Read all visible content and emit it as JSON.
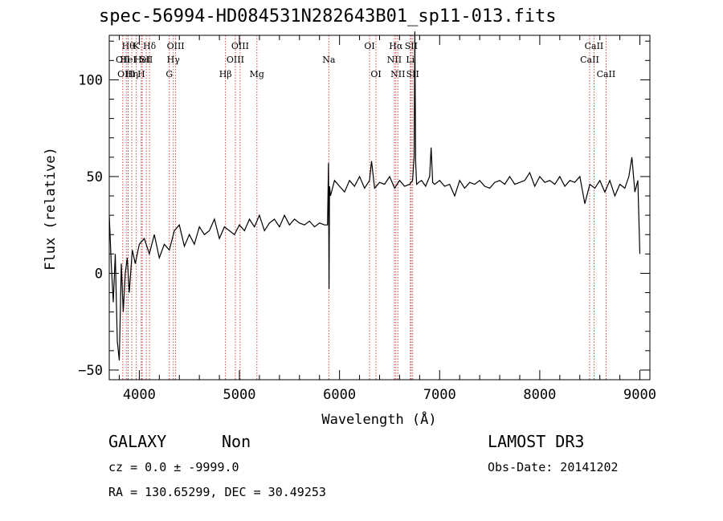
{
  "title": "spec-56994-HD084531N282643B01_sp11-013.fits",
  "info": {
    "class_label": "GALAXY",
    "subclass_label": "Non",
    "survey": "LAMOST DR3",
    "cz": "cz = 0.0 ± -9999.0",
    "obs_date": "Obs-Date: 20141202",
    "radec": "RA = 130.65299, DEC =  30.49253"
  },
  "chart_data": {
    "type": "line",
    "title": "spec-56994-HD084531N282643B01_sp11-013.fits",
    "xlabel": "Wavelength (Å)",
    "ylabel": "Flux (relative)",
    "xlim": [
      3700,
      9100
    ],
    "ylim": [
      -55,
      123
    ],
    "x_ticks": [
      4000,
      5000,
      6000,
      7000,
      8000,
      9000
    ],
    "y_ticks": [
      -50,
      0,
      50,
      100
    ],
    "grid": false,
    "line_color": "#000000",
    "marker_color": "#cc3333",
    "series": [
      {
        "x": [
          3700,
          3720,
          3740,
          3760,
          3780,
          3800,
          3820,
          3840,
          3860,
          3880,
          3900,
          3930,
          3960,
          4000,
          4050,
          4100,
          4150,
          4200,
          4250,
          4300,
          4350,
          4400,
          4450,
          4500,
          4550,
          4600,
          4650,
          4700,
          4750,
          4800,
          4850,
          4900,
          4950,
          5000,
          5050,
          5100,
          5150,
          5200,
          5250,
          5300,
          5350,
          5400,
          5450,
          5500,
          5550,
          5600,
          5650,
          5700,
          5750,
          5800,
          5850,
          5880,
          5890,
          5895,
          5900,
          5910,
          5950,
          6000,
          6050,
          6100,
          6150,
          6200,
          6250,
          6300,
          6320,
          6350,
          6400,
          6450,
          6500,
          6550,
          6600,
          6650,
          6700,
          6730,
          6745,
          6752,
          6760,
          6770,
          6790,
          6820,
          6860,
          6900,
          6915,
          6930,
          6950,
          7000,
          7050,
          7100,
          7150,
          7200,
          7250,
          7300,
          7350,
          7400,
          7450,
          7500,
          7550,
          7600,
          7650,
          7700,
          7750,
          7800,
          7850,
          7900,
          7950,
          8000,
          8050,
          8100,
          8150,
          8200,
          8250,
          8300,
          8350,
          8400,
          8450,
          8500,
          8550,
          8600,
          8650,
          8700,
          8750,
          8800,
          8850,
          8890,
          8920,
          8950,
          8980,
          9000
        ],
        "y": [
          30,
          5,
          -15,
          10,
          -35,
          -45,
          5,
          -20,
          0,
          8,
          -10,
          12,
          5,
          15,
          18,
          10,
          20,
          8,
          15,
          12,
          22,
          25,
          14,
          20,
          15,
          24,
          20,
          22,
          28,
          18,
          24,
          22,
          20,
          25,
          22,
          28,
          24,
          30,
          22,
          26,
          28,
          24,
          30,
          25,
          28,
          26,
          25,
          27,
          24,
          26,
          25,
          25,
          57,
          -8,
          45,
          40,
          48,
          45,
          42,
          48,
          45,
          50,
          44,
          48,
          58,
          44,
          47,
          46,
          50,
          44,
          48,
          45,
          46,
          48,
          60,
          125,
          58,
          46,
          47,
          48,
          45,
          50,
          65,
          47,
          46,
          48,
          45,
          46,
          40,
          48,
          44,
          47,
          46,
          48,
          45,
          44,
          47,
          48,
          46,
          50,
          46,
          47,
          48,
          52,
          45,
          50,
          47,
          48,
          46,
          50,
          45,
          48,
          47,
          50,
          36,
          46,
          44,
          48,
          42,
          48,
          40,
          46,
          44,
          50,
          60,
          42,
          48,
          10
        ]
      }
    ],
    "annotations": [
      {
        "x": 3835,
        "text": "OII",
        "row": 2
      },
      {
        "x": 3870,
        "text": "OIII",
        "row": 3
      },
      {
        "x": 3890,
        "text": "Hθ",
        "row": 1
      },
      {
        "x": 3889,
        "text": "HeI",
        "row": 2
      },
      {
        "x": 3925,
        "text": "Hη",
        "row": 3
      },
      {
        "x": 3970,
        "text": "K",
        "row": 1
      },
      {
        "x": 4020,
        "text": "H",
        "row": 3
      },
      {
        "x": 4030,
        "text": "HeI",
        "row": 2
      },
      {
        "x": 4070,
        "text": "SII",
        "row": 2
      },
      {
        "x": 4102,
        "text": "Hδ",
        "row": 1
      },
      {
        "x": 4300,
        "text": "G",
        "row": 3
      },
      {
        "x": 4340,
        "text": "Hγ",
        "row": 2
      },
      {
        "x": 4363,
        "text": "OIII",
        "row": 1
      },
      {
        "x": 4861,
        "text": "Hβ",
        "row": 3
      },
      {
        "x": 4959,
        "text": "OIII",
        "row": 2
      },
      {
        "x": 5007,
        "text": "OIII",
        "row": 1
      },
      {
        "x": 5175,
        "text": "Mg",
        "row": 3
      },
      {
        "x": 5893,
        "text": "Na",
        "row": 2
      },
      {
        "x": 6300,
        "text": "OI",
        "row": 1
      },
      {
        "x": 6364,
        "text": "OI",
        "row": 3
      },
      {
        "x": 6548,
        "text": "NII",
        "row": 2
      },
      {
        "x": 6563,
        "text": "Hα",
        "row": 1
      },
      {
        "x": 6583,
        "text": "NII",
        "row": 3
      },
      {
        "x": 6707,
        "text": "Li",
        "row": 2
      },
      {
        "x": 6716,
        "text": "SII",
        "row": 1
      },
      {
        "x": 6731,
        "text": "SII",
        "row": 3
      },
      {
        "x": 8498,
        "text": "CaII",
        "row": 2
      },
      {
        "x": 8542,
        "text": "CaII",
        "row": 1
      },
      {
        "x": 8662,
        "text": "CaII",
        "row": 3
      }
    ]
  }
}
